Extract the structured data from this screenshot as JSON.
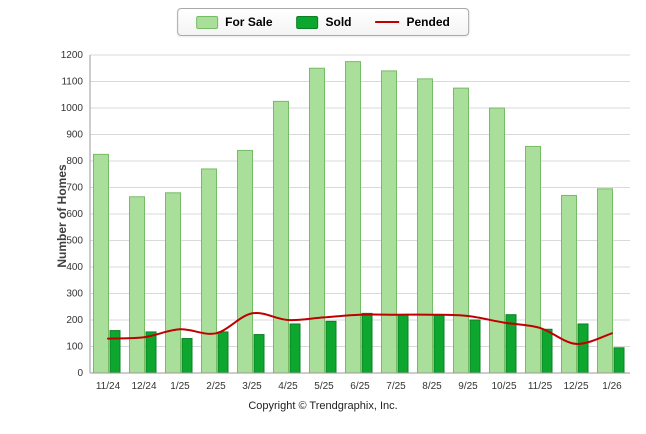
{
  "chart_data": {
    "type": "bar",
    "title": "",
    "xlabel": "",
    "ylabel": "Number of Homes",
    "ylim": [
      0,
      1200
    ],
    "ytick_step": 100,
    "grid": true,
    "legend_position": "top-center",
    "categories": [
      "11/24",
      "12/24",
      "1/25",
      "2/25",
      "3/25",
      "4/25",
      "5/25",
      "6/25",
      "7/25",
      "8/25",
      "9/25",
      "10/25",
      "11/25",
      "12/25",
      "1/26"
    ],
    "series": [
      {
        "name": "For Sale",
        "type": "bar",
        "color": "#aadf9b",
        "border_color": "#76bb66",
        "values": [
          825,
          665,
          680,
          770,
          840,
          1025,
          1150,
          1175,
          1140,
          1110,
          1075,
          1000,
          855,
          670,
          695
        ]
      },
      {
        "name": "Sold",
        "type": "bar",
        "color": "#0da62f",
        "border_color": "#0a8024",
        "values": [
          160,
          155,
          130,
          155,
          145,
          185,
          195,
          225,
          220,
          220,
          200,
          220,
          165,
          185,
          95
        ]
      },
      {
        "name": "Pended",
        "type": "line",
        "color": "#c00000",
        "values": [
          130,
          135,
          165,
          150,
          225,
          200,
          210,
          220,
          220,
          220,
          215,
          190,
          170,
          110,
          150
        ]
      }
    ]
  },
  "footer": {
    "copyright": "Copyright © Trendgraphix, Inc."
  }
}
